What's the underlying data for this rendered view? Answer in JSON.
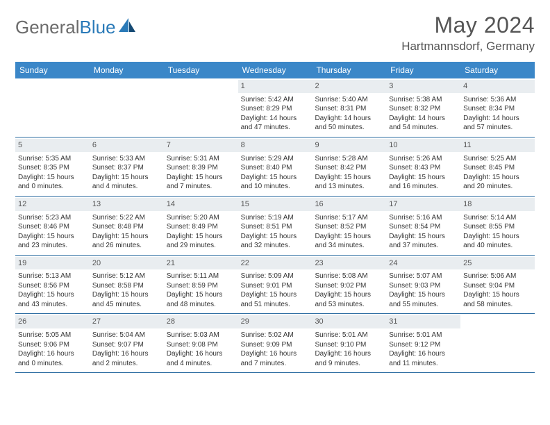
{
  "logo": {
    "text1": "General",
    "text2": "Blue"
  },
  "title": "May 2024",
  "location": "Hartmannsdorf, Germany",
  "colors": {
    "header_bg": "#3b87c8",
    "row_border": "#2f6fa3",
    "daynum_bg": "#e9edf0",
    "logo_gray": "#6b6b6b",
    "logo_blue": "#2a7ab8"
  },
  "daynames": [
    "Sunday",
    "Monday",
    "Tuesday",
    "Wednesday",
    "Thursday",
    "Friday",
    "Saturday"
  ],
  "weeks": [
    [
      {
        "n": "",
        "sr": "",
        "ss": "",
        "dl": ""
      },
      {
        "n": "",
        "sr": "",
        "ss": "",
        "dl": ""
      },
      {
        "n": "",
        "sr": "",
        "ss": "",
        "dl": ""
      },
      {
        "n": "1",
        "sr": "Sunrise: 5:42 AM",
        "ss": "Sunset: 8:29 PM",
        "dl": "Daylight: 14 hours and 47 minutes."
      },
      {
        "n": "2",
        "sr": "Sunrise: 5:40 AM",
        "ss": "Sunset: 8:31 PM",
        "dl": "Daylight: 14 hours and 50 minutes."
      },
      {
        "n": "3",
        "sr": "Sunrise: 5:38 AM",
        "ss": "Sunset: 8:32 PM",
        "dl": "Daylight: 14 hours and 54 minutes."
      },
      {
        "n": "4",
        "sr": "Sunrise: 5:36 AM",
        "ss": "Sunset: 8:34 PM",
        "dl": "Daylight: 14 hours and 57 minutes."
      }
    ],
    [
      {
        "n": "5",
        "sr": "Sunrise: 5:35 AM",
        "ss": "Sunset: 8:35 PM",
        "dl": "Daylight: 15 hours and 0 minutes."
      },
      {
        "n": "6",
        "sr": "Sunrise: 5:33 AM",
        "ss": "Sunset: 8:37 PM",
        "dl": "Daylight: 15 hours and 4 minutes."
      },
      {
        "n": "7",
        "sr": "Sunrise: 5:31 AM",
        "ss": "Sunset: 8:39 PM",
        "dl": "Daylight: 15 hours and 7 minutes."
      },
      {
        "n": "8",
        "sr": "Sunrise: 5:29 AM",
        "ss": "Sunset: 8:40 PM",
        "dl": "Daylight: 15 hours and 10 minutes."
      },
      {
        "n": "9",
        "sr": "Sunrise: 5:28 AM",
        "ss": "Sunset: 8:42 PM",
        "dl": "Daylight: 15 hours and 13 minutes."
      },
      {
        "n": "10",
        "sr": "Sunrise: 5:26 AM",
        "ss": "Sunset: 8:43 PM",
        "dl": "Daylight: 15 hours and 16 minutes."
      },
      {
        "n": "11",
        "sr": "Sunrise: 5:25 AM",
        "ss": "Sunset: 8:45 PM",
        "dl": "Daylight: 15 hours and 20 minutes."
      }
    ],
    [
      {
        "n": "12",
        "sr": "Sunrise: 5:23 AM",
        "ss": "Sunset: 8:46 PM",
        "dl": "Daylight: 15 hours and 23 minutes."
      },
      {
        "n": "13",
        "sr": "Sunrise: 5:22 AM",
        "ss": "Sunset: 8:48 PM",
        "dl": "Daylight: 15 hours and 26 minutes."
      },
      {
        "n": "14",
        "sr": "Sunrise: 5:20 AM",
        "ss": "Sunset: 8:49 PM",
        "dl": "Daylight: 15 hours and 29 minutes."
      },
      {
        "n": "15",
        "sr": "Sunrise: 5:19 AM",
        "ss": "Sunset: 8:51 PM",
        "dl": "Daylight: 15 hours and 32 minutes."
      },
      {
        "n": "16",
        "sr": "Sunrise: 5:17 AM",
        "ss": "Sunset: 8:52 PM",
        "dl": "Daylight: 15 hours and 34 minutes."
      },
      {
        "n": "17",
        "sr": "Sunrise: 5:16 AM",
        "ss": "Sunset: 8:54 PM",
        "dl": "Daylight: 15 hours and 37 minutes."
      },
      {
        "n": "18",
        "sr": "Sunrise: 5:14 AM",
        "ss": "Sunset: 8:55 PM",
        "dl": "Daylight: 15 hours and 40 minutes."
      }
    ],
    [
      {
        "n": "19",
        "sr": "Sunrise: 5:13 AM",
        "ss": "Sunset: 8:56 PM",
        "dl": "Daylight: 15 hours and 43 minutes."
      },
      {
        "n": "20",
        "sr": "Sunrise: 5:12 AM",
        "ss": "Sunset: 8:58 PM",
        "dl": "Daylight: 15 hours and 45 minutes."
      },
      {
        "n": "21",
        "sr": "Sunrise: 5:11 AM",
        "ss": "Sunset: 8:59 PM",
        "dl": "Daylight: 15 hours and 48 minutes."
      },
      {
        "n": "22",
        "sr": "Sunrise: 5:09 AM",
        "ss": "Sunset: 9:01 PM",
        "dl": "Daylight: 15 hours and 51 minutes."
      },
      {
        "n": "23",
        "sr": "Sunrise: 5:08 AM",
        "ss": "Sunset: 9:02 PM",
        "dl": "Daylight: 15 hours and 53 minutes."
      },
      {
        "n": "24",
        "sr": "Sunrise: 5:07 AM",
        "ss": "Sunset: 9:03 PM",
        "dl": "Daylight: 15 hours and 55 minutes."
      },
      {
        "n": "25",
        "sr": "Sunrise: 5:06 AM",
        "ss": "Sunset: 9:04 PM",
        "dl": "Daylight: 15 hours and 58 minutes."
      }
    ],
    [
      {
        "n": "26",
        "sr": "Sunrise: 5:05 AM",
        "ss": "Sunset: 9:06 PM",
        "dl": "Daylight: 16 hours and 0 minutes."
      },
      {
        "n": "27",
        "sr": "Sunrise: 5:04 AM",
        "ss": "Sunset: 9:07 PM",
        "dl": "Daylight: 16 hours and 2 minutes."
      },
      {
        "n": "28",
        "sr": "Sunrise: 5:03 AM",
        "ss": "Sunset: 9:08 PM",
        "dl": "Daylight: 16 hours and 4 minutes."
      },
      {
        "n": "29",
        "sr": "Sunrise: 5:02 AM",
        "ss": "Sunset: 9:09 PM",
        "dl": "Daylight: 16 hours and 7 minutes."
      },
      {
        "n": "30",
        "sr": "Sunrise: 5:01 AM",
        "ss": "Sunset: 9:10 PM",
        "dl": "Daylight: 16 hours and 9 minutes."
      },
      {
        "n": "31",
        "sr": "Sunrise: 5:01 AM",
        "ss": "Sunset: 9:12 PM",
        "dl": "Daylight: 16 hours and 11 minutes."
      },
      {
        "n": "",
        "sr": "",
        "ss": "",
        "dl": ""
      }
    ]
  ]
}
